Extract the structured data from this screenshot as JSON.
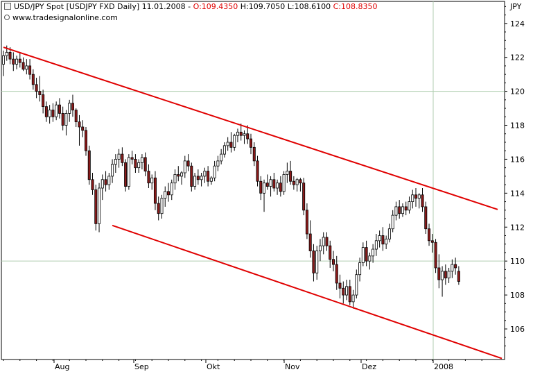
{
  "header": {
    "symbol": "USD/JPY Spot [USDJPY FXD  Daily]",
    "date": "11.01.2008",
    "open": "O:109.4350",
    "high": "H:109.7050",
    "low": "L:108.6100",
    "close": "C:108.8350"
  },
  "watermark": "www.tradesignalonline.com",
  "chart_data": {
    "type": "candlestick",
    "currency_label": "JPY",
    "y_axis": {
      "position": "right",
      "range": [
        104.2,
        125.3
      ],
      "ticks": [
        106,
        108,
        110,
        112,
        114,
        116,
        118,
        120,
        122,
        124
      ]
    },
    "x_axis": {
      "labels": [
        "Aug",
        "Sep",
        "Okt",
        "Nov",
        "Dez",
        "2008"
      ]
    },
    "gridlines": {
      "horizontal": [
        110,
        120
      ],
      "vertical": [
        "2008"
      ]
    },
    "colors": {
      "up": "#ffffff",
      "down": "#8b1a1a",
      "trendline": "#e00000",
      "grid": "#b0ceb0"
    },
    "trend_channel": {
      "upper": {
        "from": [
          "2007-07-03",
          122.6
        ],
        "to": [
          "2008-01-31",
          112.9
        ]
      },
      "lower": {
        "from": [
          "2007-08-17",
          112.1
        ],
        "to": [
          "2008-01-31",
          104.2
        ]
      }
    },
    "candles": [
      [
        121.6,
        122.4,
        120.9,
        122.1
      ],
      [
        122.1,
        122.7,
        121.8,
        122.3
      ],
      [
        122.3,
        122.6,
        121.6,
        121.9
      ],
      [
        121.9,
        122.3,
        121.2,
        121.6
      ],
      [
        121.6,
        122.1,
        121.3,
        121.9
      ],
      [
        121.9,
        122.3,
        121.4,
        121.7
      ],
      [
        121.7,
        122.0,
        121.2,
        121.3
      ],
      [
        121.3,
        121.9,
        121.0,
        121.5
      ],
      [
        121.5,
        121.9,
        120.7,
        121.0
      ],
      [
        121.0,
        121.3,
        120.1,
        120.4
      ],
      [
        120.4,
        120.8,
        119.6,
        120.0
      ],
      [
        120.0,
        120.9,
        119.4,
        119.8
      ],
      [
        119.8,
        120.1,
        118.7,
        119.1
      ],
      [
        119.1,
        119.4,
        118.2,
        118.5
      ],
      [
        118.5,
        119.2,
        118.1,
        118.9
      ],
      [
        118.9,
        119.3,
        118.2,
        118.5
      ],
      [
        118.5,
        119.4,
        118.3,
        119.2
      ],
      [
        119.2,
        119.6,
        118.4,
        118.7
      ],
      [
        118.7,
        119.1,
        117.7,
        118.0
      ],
      [
        118.0,
        118.9,
        117.4,
        118.7
      ],
      [
        118.7,
        119.5,
        118.2,
        119.3
      ],
      [
        119.3,
        119.8,
        118.5,
        118.9
      ],
      [
        118.9,
        119.0,
        117.9,
        118.2
      ],
      [
        118.2,
        118.6,
        116.8,
        117.9
      ],
      [
        117.9,
        118.3,
        117.3,
        117.7
      ],
      [
        117.7,
        117.9,
        116.2,
        116.5
      ],
      [
        116.5,
        116.8,
        114.5,
        114.8
      ],
      [
        114.8,
        115.2,
        113.9,
        114.2
      ],
      [
        114.2,
        114.5,
        111.8,
        112.2
      ],
      [
        112.2,
        114.6,
        111.7,
        114.3
      ],
      [
        114.3,
        115.1,
        113.6,
        114.8
      ],
      [
        114.8,
        115.3,
        114.1,
        114.5
      ],
      [
        114.5,
        115.2,
        114.2,
        115.0
      ],
      [
        115.0,
        116.0,
        114.6,
        115.7
      ],
      [
        115.7,
        116.3,
        115.2,
        116.0
      ],
      [
        116.0,
        116.6,
        115.5,
        116.3
      ],
      [
        116.3,
        116.7,
        115.6,
        115.8
      ],
      [
        115.8,
        116.0,
        114.1,
        114.4
      ],
      [
        114.4,
        116.3,
        114.2,
        116.1
      ],
      [
        116.1,
        116.5,
        115.7,
        116.0
      ],
      [
        116.0,
        116.3,
        115.2,
        115.5
      ],
      [
        115.5,
        116.0,
        115.2,
        115.8
      ],
      [
        115.8,
        116.3,
        115.4,
        116.1
      ],
      [
        116.1,
        116.4,
        115.0,
        115.3
      ],
      [
        115.3,
        115.7,
        114.3,
        114.6
      ],
      [
        114.6,
        115.1,
        114.2,
        114.9
      ],
      [
        114.9,
        115.3,
        113.0,
        113.4
      ],
      [
        113.4,
        113.8,
        112.4,
        112.8
      ],
      [
        112.8,
        113.9,
        112.5,
        113.7
      ],
      [
        113.7,
        114.4,
        113.2,
        114.1
      ],
      [
        114.1,
        114.6,
        113.5,
        113.9
      ],
      [
        113.9,
        114.8,
        113.6,
        114.6
      ],
      [
        114.6,
        115.4,
        114.2,
        115.1
      ],
      [
        115.1,
        115.6,
        114.7,
        115.0
      ],
      [
        115.0,
        115.3,
        114.5,
        115.2
      ],
      [
        115.2,
        116.2,
        114.9,
        115.9
      ],
      [
        115.9,
        116.3,
        115.3,
        115.6
      ],
      [
        115.6,
        115.8,
        114.1,
        114.4
      ],
      [
        114.4,
        115.2,
        114.2,
        115.0
      ],
      [
        115.0,
        115.4,
        114.5,
        114.8
      ],
      [
        114.8,
        115.2,
        114.4,
        115.0
      ],
      [
        115.0,
        115.5,
        114.6,
        115.3
      ],
      [
        115.3,
        115.6,
        114.4,
        114.7
      ],
      [
        114.7,
        115.0,
        114.5,
        114.9
      ],
      [
        114.9,
        115.9,
        114.7,
        115.6
      ],
      [
        115.6,
        116.2,
        115.3,
        115.9
      ],
      [
        115.9,
        116.6,
        115.7,
        116.3
      ],
      [
        116.3,
        117.0,
        116.1,
        116.8
      ],
      [
        116.8,
        117.3,
        116.5,
        117.0
      ],
      [
        117.0,
        117.6,
        116.4,
        116.7
      ],
      [
        116.7,
        117.5,
        116.5,
        117.4
      ],
      [
        117.4,
        117.8,
        117.0,
        117.6
      ],
      [
        117.6,
        118.1,
        117.1,
        117.4
      ],
      [
        117.4,
        117.7,
        116.9,
        117.5
      ],
      [
        117.5,
        118.0,
        116.9,
        117.2
      ],
      [
        117.2,
        117.5,
        116.3,
        116.7
      ],
      [
        116.7,
        117.0,
        115.6,
        115.9
      ],
      [
        115.9,
        116.2,
        114.4,
        114.7
      ],
      [
        114.7,
        115.0,
        113.6,
        114.0
      ],
      [
        114.0,
        114.8,
        112.9,
        114.6
      ],
      [
        114.6,
        115.1,
        114.2,
        114.4
      ],
      [
        114.4,
        115.0,
        113.8,
        114.8
      ],
      [
        114.8,
        115.2,
        114.1,
        114.3
      ],
      [
        114.3,
        114.8,
        113.9,
        114.6
      ],
      [
        114.6,
        115.0,
        113.8,
        114.1
      ],
      [
        114.1,
        115.3,
        113.9,
        115.1
      ],
      [
        115.1,
        115.8,
        114.6,
        115.3
      ],
      [
        115.3,
        115.9,
        114.5,
        114.7
      ],
      [
        114.7,
        115.0,
        114.2,
        114.5
      ],
      [
        114.5,
        114.9,
        114.1,
        114.8
      ],
      [
        114.8,
        114.9,
        114.1,
        114.6
      ],
      [
        114.6,
        114.9,
        112.7,
        113.0
      ],
      [
        113.0,
        113.4,
        111.3,
        111.6
      ],
      [
        111.6,
        112.4,
        110.2,
        110.6
      ],
      [
        110.6,
        111.0,
        108.8,
        109.3
      ],
      [
        109.3,
        110.9,
        108.9,
        110.6
      ],
      [
        110.6,
        111.3,
        110.0,
        110.9
      ],
      [
        110.9,
        111.7,
        110.4,
        111.4
      ],
      [
        111.4,
        111.7,
        110.6,
        110.9
      ],
      [
        110.9,
        111.2,
        109.6,
        110.1
      ],
      [
        110.1,
        110.6,
        109.4,
        109.8
      ],
      [
        109.8,
        110.3,
        108.3,
        108.7
      ],
      [
        108.7,
        109.2,
        107.8,
        108.4
      ],
      [
        108.4,
        108.8,
        107.5,
        108.0
      ],
      [
        108.0,
        108.9,
        107.7,
        108.5
      ],
      [
        108.5,
        108.9,
        107.4,
        107.6
      ],
      [
        107.6,
        108.3,
        107.2,
        108.0
      ],
      [
        108.0,
        109.5,
        107.8,
        109.2
      ],
      [
        109.2,
        110.2,
        108.8,
        109.9
      ],
      [
        109.9,
        111.1,
        109.7,
        110.8
      ],
      [
        110.8,
        111.2,
        109.7,
        110.0
      ],
      [
        110.0,
        110.5,
        109.5,
        110.3
      ],
      [
        110.3,
        111.0,
        109.9,
        110.7
      ],
      [
        110.7,
        111.6,
        110.3,
        111.2
      ],
      [
        111.2,
        111.8,
        110.8,
        111.5
      ],
      [
        111.5,
        112.0,
        110.6,
        111.0
      ],
      [
        111.0,
        111.5,
        110.7,
        111.3
      ],
      [
        111.3,
        112.2,
        111.1,
        111.9
      ],
      [
        111.9,
        113.0,
        111.7,
        112.7
      ],
      [
        112.7,
        113.5,
        112.4,
        113.2
      ],
      [
        113.2,
        113.6,
        112.5,
        112.8
      ],
      [
        112.8,
        113.4,
        112.6,
        113.2
      ],
      [
        113.2,
        113.5,
        112.7,
        113.0
      ],
      [
        113.0,
        113.8,
        112.8,
        113.5
      ],
      [
        113.5,
        114.2,
        113.1,
        113.9
      ],
      [
        113.9,
        114.3,
        113.2,
        113.7
      ],
      [
        113.7,
        114.0,
        113.1,
        113.9
      ],
      [
        113.9,
        114.3,
        112.9,
        113.2
      ],
      [
        113.2,
        113.5,
        111.6,
        111.9
      ],
      [
        111.9,
        112.2,
        110.9,
        111.2
      ],
      [
        111.2,
        111.6,
        110.5,
        111.1
      ],
      [
        111.1,
        111.3,
        109.3,
        109.6
      ],
      [
        109.6,
        110.4,
        108.4,
        108.9
      ],
      [
        108.9,
        109.7,
        107.9,
        109.4
      ],
      [
        109.4,
        109.8,
        108.6,
        109.0
      ],
      [
        109.0,
        109.6,
        108.7,
        109.4
      ],
      [
        109.4,
        110.1,
        109.0,
        109.8
      ],
      [
        109.8,
        110.2,
        109.2,
        109.6
      ],
      [
        109.4,
        109.7,
        108.6,
        108.8
      ]
    ]
  }
}
